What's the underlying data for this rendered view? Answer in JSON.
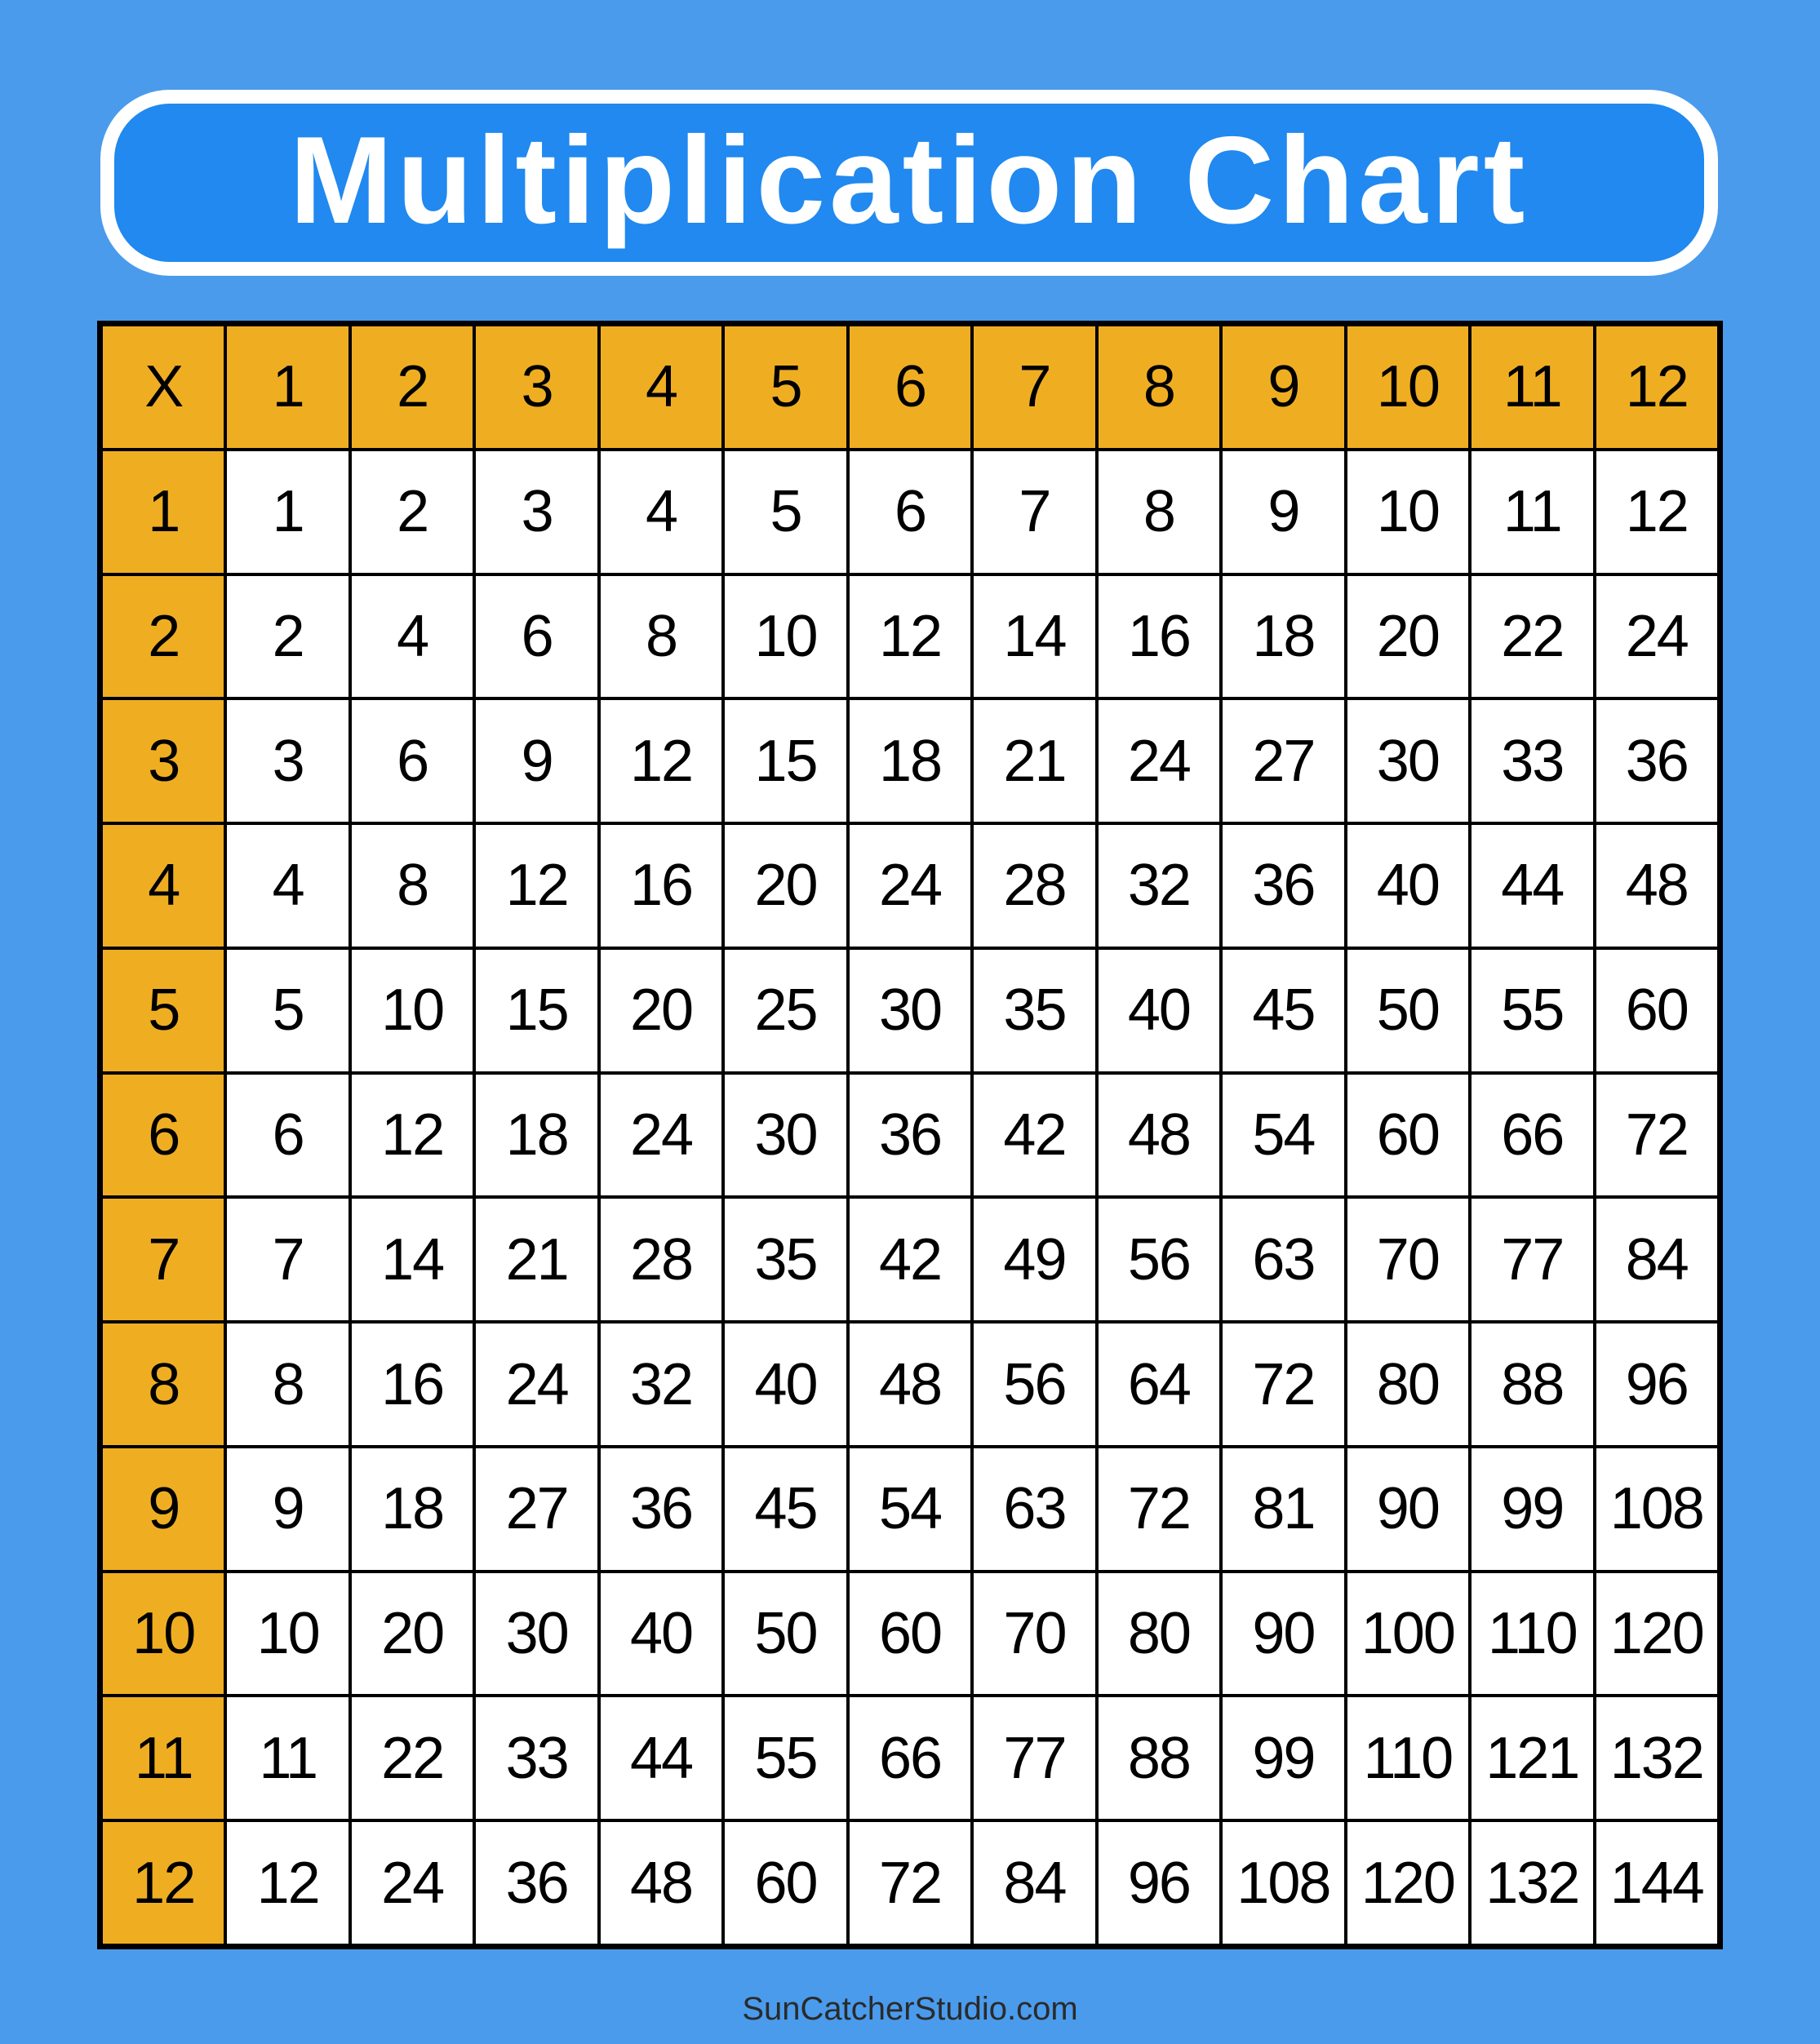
{
  "title": "Multiplication Chart",
  "corner_label": "X",
  "column_headers": [
    "1",
    "2",
    "3",
    "4",
    "5",
    "6",
    "7",
    "8",
    "9",
    "10",
    "11",
    "12"
  ],
  "rows": [
    {
      "header": "1",
      "cells": [
        "1",
        "2",
        "3",
        "4",
        "5",
        "6",
        "7",
        "8",
        "9",
        "10",
        "11",
        "12"
      ]
    },
    {
      "header": "2",
      "cells": [
        "2",
        "4",
        "6",
        "8",
        "10",
        "12",
        "14",
        "16",
        "18",
        "20",
        "22",
        "24"
      ]
    },
    {
      "header": "3",
      "cells": [
        "3",
        "6",
        "9",
        "12",
        "15",
        "18",
        "21",
        "24",
        "27",
        "30",
        "33",
        "36"
      ]
    },
    {
      "header": "4",
      "cells": [
        "4",
        "8",
        "12",
        "16",
        "20",
        "24",
        "28",
        "32",
        "36",
        "40",
        "44",
        "48"
      ]
    },
    {
      "header": "5",
      "cells": [
        "5",
        "10",
        "15",
        "20",
        "25",
        "30",
        "35",
        "40",
        "45",
        "50",
        "55",
        "60"
      ]
    },
    {
      "header": "6",
      "cells": [
        "6",
        "12",
        "18",
        "24",
        "30",
        "36",
        "42",
        "48",
        "54",
        "60",
        "66",
        "72"
      ]
    },
    {
      "header": "7",
      "cells": [
        "7",
        "14",
        "21",
        "28",
        "35",
        "42",
        "49",
        "56",
        "63",
        "70",
        "77",
        "84"
      ]
    },
    {
      "header": "8",
      "cells": [
        "8",
        "16",
        "24",
        "32",
        "40",
        "48",
        "56",
        "64",
        "72",
        "80",
        "88",
        "96"
      ]
    },
    {
      "header": "9",
      "cells": [
        "9",
        "18",
        "27",
        "36",
        "45",
        "54",
        "63",
        "72",
        "81",
        "90",
        "99",
        "108"
      ]
    },
    {
      "header": "10",
      "cells": [
        "10",
        "20",
        "30",
        "40",
        "50",
        "60",
        "70",
        "80",
        "90",
        "100",
        "110",
        "120"
      ]
    },
    {
      "header": "11",
      "cells": [
        "11",
        "22",
        "33",
        "44",
        "55",
        "66",
        "77",
        "88",
        "99",
        "110",
        "121",
        "132"
      ]
    },
    {
      "header": "12",
      "cells": [
        "12",
        "24",
        "36",
        "48",
        "60",
        "72",
        "84",
        "96",
        "108",
        "120",
        "132",
        "144"
      ]
    }
  ],
  "footer": "SunCatcherStudio.com",
  "colors": {
    "background": "#4a9bec",
    "title_box": "#2189ef",
    "header_cells": "#efae22",
    "body_cells": "#ffffff",
    "grid_lines": "#000000"
  }
}
